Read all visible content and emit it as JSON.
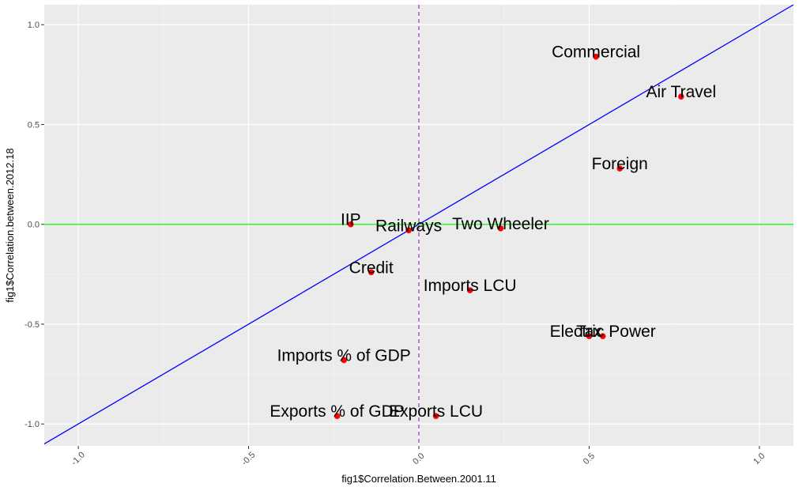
{
  "chart_data": {
    "type": "scatter",
    "xlabel": "fig1$Correlation.Between.2001.11",
    "ylabel": "fig1$Correlation.between.2012.18",
    "xlim": [
      -1.1,
      1.1
    ],
    "ylim": [
      -1.11,
      1.1
    ],
    "x_ticks": [
      -1.0,
      -0.5,
      0.0,
      0.5,
      1.0
    ],
    "x_tick_labels": [
      "-1.0",
      "-0.5",
      "0.0",
      "0.5",
      "1.0"
    ],
    "y_ticks": [
      -1.0,
      -0.5,
      0.0,
      0.5,
      1.0
    ],
    "y_tick_labels": [
      "-1.0",
      "-0.5",
      "0.0",
      "0.5",
      "1.0"
    ],
    "grid": true,
    "point_color": "#ff0000",
    "points": [
      {
        "label": "Commercial",
        "x": 0.52,
        "y": 0.84
      },
      {
        "label": "Air Travel",
        "x": 0.77,
        "y": 0.64
      },
      {
        "label": "Foreign",
        "x": 0.59,
        "y": 0.28
      },
      {
        "label": "IIP",
        "x": -0.2,
        "y": 0.0
      },
      {
        "label": "Railways",
        "x": -0.03,
        "y": -0.03
      },
      {
        "label": "Two Wheeler",
        "x": 0.24,
        "y": -0.02
      },
      {
        "label": "Credit",
        "x": -0.14,
        "y": -0.24
      },
      {
        "label": "Imports LCU",
        "x": 0.15,
        "y": -0.33
      },
      {
        "label": "Tax",
        "x": 0.5,
        "y": -0.56
      },
      {
        "label": "Electric Power",
        "x": 0.54,
        "y": -0.56
      },
      {
        "label": "Imports % of GDP",
        "x": -0.22,
        "y": -0.68
      },
      {
        "label": "Exports % of GDP",
        "x": -0.24,
        "y": -0.96
      },
      {
        "label": "Exports LCU",
        "x": 0.05,
        "y": -0.96
      }
    ],
    "reference_lines": [
      {
        "kind": "diagonal",
        "slope": 1,
        "intercept": 0,
        "color": "#0000ff",
        "style": "solid"
      },
      {
        "kind": "horizontal",
        "y": 0,
        "color": "#00ff00",
        "style": "solid"
      },
      {
        "kind": "vertical",
        "x": 0,
        "color": "#9932cc",
        "style": "dashed"
      }
    ]
  }
}
